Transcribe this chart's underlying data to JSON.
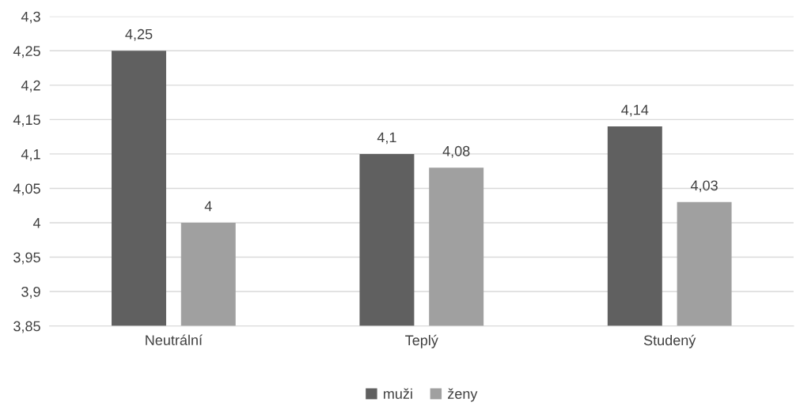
{
  "chart_data": {
    "type": "bar",
    "categories": [
      "Neutrální",
      "Teplý",
      "Studený"
    ],
    "series": [
      {
        "name": "muži",
        "color": "#606060",
        "values": [
          4.25,
          4.1,
          4.14
        ],
        "value_labels": [
          "4,25",
          "4,1",
          "4,14"
        ]
      },
      {
        "name": "ženy",
        "color": "#a0a0a0",
        "values": [
          4.0,
          4.08,
          4.03
        ],
        "value_labels": [
          "4",
          "4,08",
          "4,03"
        ]
      }
    ],
    "ylim": [
      3.85,
      4.3
    ],
    "yticks": [
      {
        "value": 3.85,
        "label": "3,85"
      },
      {
        "value": 3.9,
        "label": "3,9"
      },
      {
        "value": 3.95,
        "label": "3,95"
      },
      {
        "value": 4.0,
        "label": "4"
      },
      {
        "value": 4.05,
        "label": "4,05"
      },
      {
        "value": 4.1,
        "label": "4,1"
      },
      {
        "value": 4.15,
        "label": "4,15"
      },
      {
        "value": 4.2,
        "label": "4,2"
      },
      {
        "value": 4.25,
        "label": "4,25"
      },
      {
        "value": 4.3,
        "label": "4,3"
      }
    ],
    "grid": "y",
    "legend": "bottom"
  }
}
